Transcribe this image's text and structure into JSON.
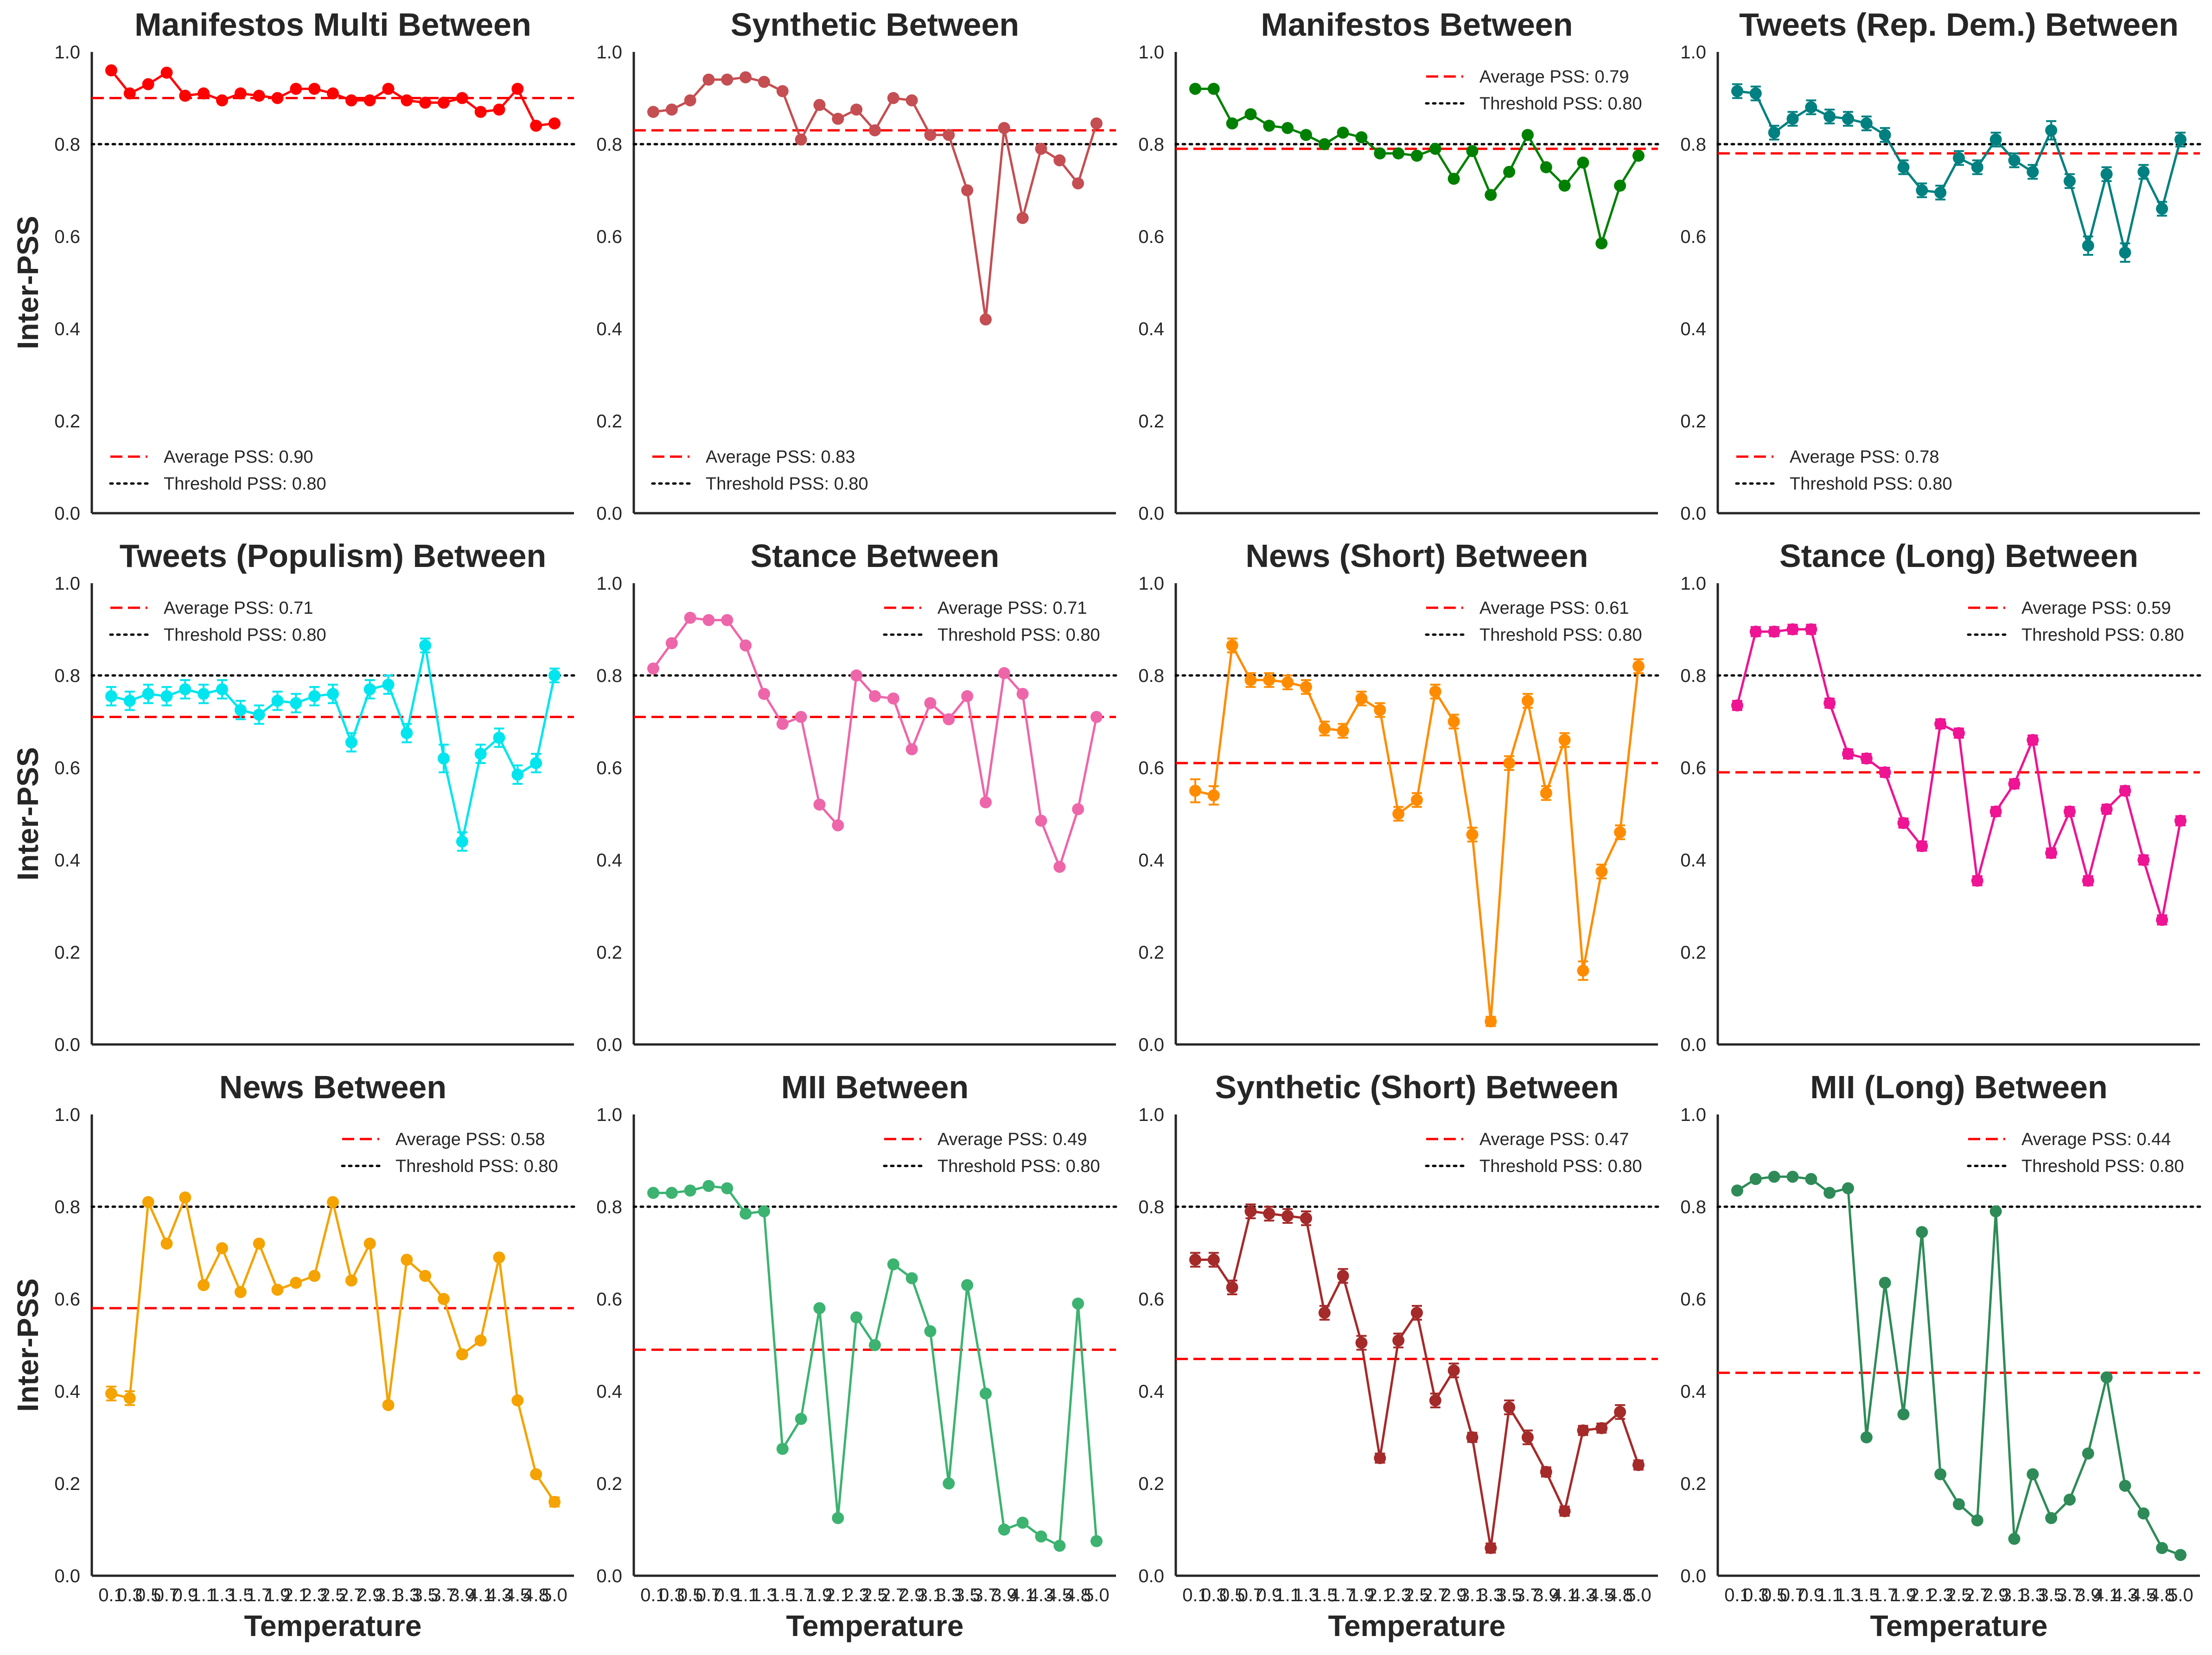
{
  "figure": {
    "ylabel": "Inter-PSS",
    "xlabel": "Temperature"
  },
  "chart_data": [
    {
      "type": "line",
      "title": "Manifestos Multi Between",
      "color": "#ff0000",
      "legend_position": "lower-left",
      "ylim": [
        0,
        1
      ],
      "yticks": [
        "0.0",
        "0.2",
        "0.4",
        "0.6",
        "0.8",
        "1.0"
      ],
      "x": [
        0.1,
        0.3,
        0.5,
        0.7,
        0.9,
        1.1,
        1.3,
        1.5,
        1.7,
        1.9,
        2.1,
        2.3,
        2.5,
        2.7,
        2.9,
        3.1,
        3.3,
        3.5,
        3.7,
        3.9,
        4.1,
        4.3,
        4.5,
        4.8,
        5.0
      ],
      "values": [
        0.96,
        0.91,
        0.93,
        0.955,
        0.905,
        0.91,
        0.895,
        0.91,
        0.905,
        0.9,
        0.92,
        0.92,
        0.91,
        0.895,
        0.895,
        0.92,
        0.895,
        0.89,
        0.89,
        0.9,
        0.87,
        0.875,
        0.92,
        0.84,
        0.845
      ],
      "errors": [
        0,
        0,
        0,
        0,
        0,
        0,
        0,
        0,
        0,
        0,
        0,
        0,
        0,
        0,
        0,
        0,
        0,
        0,
        0,
        0,
        0,
        0,
        0,
        0,
        0
      ],
      "average": 0.9,
      "threshold": 0.8,
      "legend": [
        "Average PSS: 0.90",
        "Threshold PSS: 0.80"
      ],
      "show_xticks": false,
      "show_xlabel": false,
      "show_ylabel": true
    },
    {
      "type": "line",
      "title": "Synthetic Between",
      "color": "#c44e52",
      "legend_position": "lower-left",
      "ylim": [
        0,
        1
      ],
      "yticks": [
        "0.0",
        "0.2",
        "0.4",
        "0.6",
        "0.8",
        "1.0"
      ],
      "x": [
        0.1,
        0.3,
        0.5,
        0.7,
        0.9,
        1.1,
        1.3,
        1.5,
        1.7,
        1.9,
        2.1,
        2.3,
        2.5,
        2.7,
        2.9,
        3.1,
        3.3,
        3.5,
        3.7,
        3.9,
        4.1,
        4.3,
        4.5,
        4.8,
        5.0
      ],
      "values": [
        0.87,
        0.875,
        0.895,
        0.94,
        0.94,
        0.945,
        0.935,
        0.915,
        0.81,
        0.885,
        0.855,
        0.875,
        0.83,
        0.9,
        0.895,
        0.82,
        0.82,
        0.7,
        0.42,
        0.835,
        0.64,
        0.79,
        0.765,
        0.715,
        0.845
      ],
      "errors": [
        0,
        0,
        0,
        0,
        0,
        0,
        0,
        0,
        0,
        0,
        0,
        0,
        0,
        0,
        0,
        0,
        0,
        0,
        0,
        0,
        0,
        0,
        0,
        0,
        0
      ],
      "average": 0.83,
      "threshold": 0.8,
      "legend": [
        "Average PSS: 0.83",
        "Threshold PSS: 0.80"
      ],
      "show_xticks": false,
      "show_xlabel": false,
      "show_ylabel": false
    },
    {
      "type": "line",
      "title": "Manifestos Between",
      "color": "#008000",
      "legend_position": "upper-right",
      "ylim": [
        0,
        1
      ],
      "yticks": [
        "0.0",
        "0.2",
        "0.4",
        "0.6",
        "0.8",
        "1.0"
      ],
      "x": [
        0.1,
        0.3,
        0.5,
        0.7,
        0.9,
        1.1,
        1.3,
        1.5,
        1.7,
        1.9,
        2.1,
        2.3,
        2.5,
        2.7,
        2.9,
        3.1,
        3.3,
        3.5,
        3.7,
        3.9,
        4.1,
        4.3,
        4.5,
        4.8,
        5.0
      ],
      "values": [
        0.92,
        0.92,
        0.845,
        0.865,
        0.84,
        0.835,
        0.82,
        0.8,
        0.825,
        0.815,
        0.78,
        0.78,
        0.775,
        0.79,
        0.725,
        0.785,
        0.69,
        0.74,
        0.82,
        0.75,
        0.71,
        0.76,
        0.585,
        0.71,
        0.775
      ],
      "errors": [
        0,
        0,
        0,
        0,
        0,
        0,
        0,
        0,
        0,
        0,
        0,
        0,
        0,
        0,
        0,
        0,
        0,
        0,
        0,
        0,
        0,
        0,
        0,
        0,
        0
      ],
      "average": 0.79,
      "threshold": 0.8,
      "legend": [
        "Average PSS: 0.79",
        "Threshold PSS: 0.80"
      ],
      "show_xticks": false,
      "show_xlabel": false,
      "show_ylabel": false
    },
    {
      "type": "line",
      "title": "Tweets (Rep. Dem.) Between",
      "color": "#008080",
      "legend_position": "lower-left",
      "ylim": [
        0,
        1
      ],
      "yticks": [
        "0.0",
        "0.2",
        "0.4",
        "0.6",
        "0.8",
        "1.0"
      ],
      "x": [
        0.1,
        0.3,
        0.5,
        0.7,
        0.9,
        1.1,
        1.3,
        1.5,
        1.7,
        1.9,
        2.1,
        2.3,
        2.5,
        2.7,
        2.9,
        3.1,
        3.3,
        3.5,
        3.7,
        3.9,
        4.1,
        4.3,
        4.5,
        4.8,
        5.0
      ],
      "values": [
        0.915,
        0.91,
        0.825,
        0.855,
        0.88,
        0.86,
        0.855,
        0.845,
        0.82,
        0.75,
        0.7,
        0.695,
        0.77,
        0.75,
        0.81,
        0.765,
        0.74,
        0.83,
        0.72,
        0.58,
        0.735,
        0.565,
        0.74,
        0.66,
        0.81
      ],
      "errors": [
        0.015,
        0.015,
        0.015,
        0.015,
        0.015,
        0.015,
        0.015,
        0.015,
        0.015,
        0.015,
        0.015,
        0.015,
        0.015,
        0.015,
        0.015,
        0.015,
        0.015,
        0.02,
        0.015,
        0.02,
        0.015,
        0.02,
        0.015,
        0.015,
        0.015
      ],
      "average": 0.78,
      "threshold": 0.8,
      "legend": [
        "Average PSS: 0.78",
        "Threshold PSS: 0.80"
      ],
      "show_xticks": false,
      "show_xlabel": false,
      "show_ylabel": false
    },
    {
      "type": "line",
      "title": "Tweets (Populism) Between",
      "color": "#00e5ee",
      "legend_position": "upper-left",
      "ylim": [
        0,
        1
      ],
      "yticks": [
        "0.0",
        "0.2",
        "0.4",
        "0.6",
        "0.8",
        "1.0"
      ],
      "x": [
        0.1,
        0.3,
        0.5,
        0.7,
        0.9,
        1.1,
        1.3,
        1.5,
        1.7,
        1.9,
        2.1,
        2.3,
        2.5,
        2.7,
        2.9,
        3.1,
        3.3,
        3.5,
        3.7,
        3.9,
        4.1,
        4.3,
        4.5,
        4.8,
        5.0
      ],
      "values": [
        0.755,
        0.745,
        0.76,
        0.755,
        0.77,
        0.76,
        0.77,
        0.725,
        0.715,
        0.745,
        0.74,
        0.755,
        0.76,
        0.655,
        0.77,
        0.78,
        0.675,
        0.865,
        0.62,
        0.44,
        0.63,
        0.665,
        0.585,
        0.61,
        0.8
      ],
      "errors": [
        0.02,
        0.02,
        0.02,
        0.02,
        0.02,
        0.02,
        0.02,
        0.02,
        0.02,
        0.02,
        0.02,
        0.02,
        0.02,
        0.02,
        0.02,
        0.02,
        0.02,
        0.015,
        0.03,
        0.02,
        0.02,
        0.02,
        0.02,
        0.02,
        0.015
      ],
      "average": 0.71,
      "threshold": 0.8,
      "legend": [
        "Average PSS: 0.71",
        "Threshold PSS: 0.80"
      ],
      "show_xticks": false,
      "show_xlabel": false,
      "show_ylabel": true
    },
    {
      "type": "line",
      "title": "Stance Between",
      "color": "#ee66aa",
      "legend_position": "upper-right",
      "ylim": [
        0,
        1
      ],
      "yticks": [
        "0.0",
        "0.2",
        "0.4",
        "0.6",
        "0.8",
        "1.0"
      ],
      "x": [
        0.1,
        0.3,
        0.5,
        0.7,
        0.9,
        1.1,
        1.3,
        1.5,
        1.7,
        1.9,
        2.1,
        2.3,
        2.5,
        2.7,
        2.9,
        3.1,
        3.3,
        3.5,
        3.7,
        3.9,
        4.1,
        4.3,
        4.5,
        4.8,
        5.0
      ],
      "values": [
        0.815,
        0.87,
        0.925,
        0.92,
        0.92,
        0.865,
        0.76,
        0.695,
        0.71,
        0.52,
        0.475,
        0.8,
        0.755,
        0.75,
        0.64,
        0.74,
        0.705,
        0.755,
        0.525,
        0.805,
        0.76,
        0.485,
        0.385,
        0.51,
        0.71
      ],
      "errors": [
        0,
        0,
        0,
        0,
        0,
        0,
        0,
        0,
        0,
        0,
        0,
        0,
        0,
        0,
        0,
        0,
        0,
        0,
        0,
        0,
        0,
        0,
        0,
        0,
        0
      ],
      "average": 0.71,
      "threshold": 0.8,
      "legend": [
        "Average PSS: 0.71",
        "Threshold PSS: 0.80"
      ],
      "show_xticks": false,
      "show_xlabel": false,
      "show_ylabel": false
    },
    {
      "type": "line",
      "title": "News (Short) Between",
      "color": "#ff8c00",
      "legend_position": "upper-right",
      "ylim": [
        0,
        1
      ],
      "yticks": [
        "0.0",
        "0.2",
        "0.4",
        "0.6",
        "0.8",
        "1.0"
      ],
      "x": [
        0.1,
        0.3,
        0.5,
        0.7,
        0.9,
        1.1,
        1.3,
        1.5,
        1.7,
        1.9,
        2.1,
        2.3,
        2.5,
        2.7,
        2.9,
        3.1,
        3.3,
        3.5,
        3.7,
        3.9,
        4.1,
        4.3,
        4.5,
        4.8,
        5.0
      ],
      "values": [
        0.55,
        0.54,
        0.865,
        0.79,
        0.79,
        0.785,
        0.775,
        0.685,
        0.68,
        0.75,
        0.725,
        0.5,
        0.53,
        0.765,
        0.7,
        0.455,
        0.05,
        0.61,
        0.745,
        0.545,
        0.66,
        0.16,
        0.375,
        0.46,
        0.82
      ],
      "errors": [
        0.025,
        0.02,
        0.015,
        0.015,
        0.015,
        0.015,
        0.015,
        0.015,
        0.015,
        0.015,
        0.015,
        0.015,
        0.015,
        0.015,
        0.015,
        0.015,
        0.01,
        0.015,
        0.015,
        0.015,
        0.015,
        0.02,
        0.015,
        0.015,
        0.015
      ],
      "average": 0.61,
      "threshold": 0.8,
      "legend": [
        "Average PSS: 0.61",
        "Threshold PSS: 0.80"
      ],
      "show_xticks": false,
      "show_xlabel": false,
      "show_ylabel": false
    },
    {
      "type": "line",
      "title": "Stance (Long) Between",
      "color": "#ee1493",
      "legend_position": "upper-right",
      "ylim": [
        0,
        1
      ],
      "yticks": [
        "0.0",
        "0.2",
        "0.4",
        "0.6",
        "0.8",
        "1.0"
      ],
      "x": [
        0.1,
        0.3,
        0.5,
        0.7,
        0.9,
        1.1,
        1.3,
        1.5,
        1.7,
        1.9,
        2.1,
        2.3,
        2.5,
        2.7,
        2.9,
        3.1,
        3.3,
        3.5,
        3.7,
        3.9,
        4.1,
        4.3,
        4.5,
        4.8,
        5.0
      ],
      "values": [
        0.735,
        0.895,
        0.895,
        0.9,
        0.9,
        0.74,
        0.63,
        0.62,
        0.59,
        0.48,
        0.43,
        0.695,
        0.675,
        0.355,
        0.505,
        0.565,
        0.66,
        0.415,
        0.505,
        0.355,
        0.51,
        0.55,
        0.4,
        0.27,
        0.485
      ],
      "errors": [
        0.01,
        0.01,
        0.01,
        0.01,
        0.01,
        0.01,
        0.01,
        0.01,
        0.01,
        0.01,
        0.01,
        0.01,
        0.01,
        0.01,
        0.01,
        0.01,
        0.01,
        0.01,
        0.01,
        0.01,
        0.01,
        0.01,
        0.01,
        0.01,
        0.01
      ],
      "average": 0.59,
      "threshold": 0.8,
      "legend": [
        "Average PSS: 0.59",
        "Threshold PSS: 0.80"
      ],
      "show_xticks": false,
      "show_xlabel": false,
      "show_ylabel": false
    },
    {
      "type": "line",
      "title": "News Between",
      "color": "#f4a300",
      "legend_position": "upper-right",
      "ylim": [
        0,
        1
      ],
      "yticks": [
        "0.0",
        "0.2",
        "0.4",
        "0.6",
        "0.8",
        "1.0"
      ],
      "x": [
        0.1,
        0.3,
        0.5,
        0.7,
        0.9,
        1.1,
        1.3,
        1.5,
        1.7,
        1.9,
        2.1,
        2.3,
        2.5,
        2.7,
        2.9,
        3.1,
        3.3,
        3.5,
        3.7,
        3.9,
        4.1,
        4.3,
        4.5,
        4.8,
        5.0
      ],
      "values": [
        0.395,
        0.385,
        0.81,
        0.72,
        0.82,
        0.63,
        0.71,
        0.615,
        0.72,
        0.62,
        0.635,
        0.65,
        0.81,
        0.64,
        0.72,
        0.37,
        0.685,
        0.65,
        0.6,
        0.48,
        0.51,
        0.69,
        0.38,
        0.22,
        0.16
      ],
      "errors": [
        0.015,
        0.015,
        0,
        0,
        0,
        0,
        0,
        0,
        0,
        0,
        0,
        0,
        0,
        0,
        0,
        0,
        0,
        0,
        0,
        0,
        0,
        0,
        0,
        0,
        0.01
      ],
      "average": 0.58,
      "threshold": 0.8,
      "legend": [
        "Average PSS: 0.58",
        "Threshold PSS: 0.80"
      ],
      "show_xticks": true,
      "show_xlabel": true,
      "show_ylabel": true
    },
    {
      "type": "line",
      "title": "MII Between",
      "color": "#3cb371",
      "legend_position": "upper-right",
      "ylim": [
        0,
        1
      ],
      "yticks": [
        "0.0",
        "0.2",
        "0.4",
        "0.6",
        "0.8",
        "1.0"
      ],
      "x": [
        0.1,
        0.3,
        0.5,
        0.7,
        0.9,
        1.1,
        1.3,
        1.5,
        1.7,
        1.9,
        2.1,
        2.3,
        2.5,
        2.7,
        2.9,
        3.1,
        3.3,
        3.5,
        3.7,
        3.9,
        4.1,
        4.3,
        4.5,
        4.8,
        5.0
      ],
      "values": [
        0.83,
        0.83,
        0.835,
        0.845,
        0.84,
        0.785,
        0.79,
        0.275,
        0.34,
        0.58,
        0.125,
        0.56,
        0.5,
        0.675,
        0.645,
        0.53,
        0.2,
        0.63,
        0.395,
        0.1,
        0.115,
        0.085,
        0.065,
        0.59,
        0.075
      ],
      "errors": [
        0,
        0,
        0,
        0,
        0,
        0,
        0,
        0,
        0,
        0,
        0,
        0,
        0,
        0,
        0,
        0,
        0,
        0,
        0,
        0,
        0,
        0,
        0,
        0,
        0
      ],
      "average": 0.49,
      "threshold": 0.8,
      "legend": [
        "Average PSS: 0.49",
        "Threshold PSS: 0.80"
      ],
      "show_xticks": true,
      "show_xlabel": true,
      "show_ylabel": false
    },
    {
      "type": "line",
      "title": "Synthetic (Short) Between",
      "color": "#a52a2a",
      "legend_position": "upper-right",
      "ylim": [
        0,
        1
      ],
      "yticks": [
        "0.0",
        "0.2",
        "0.4",
        "0.6",
        "0.8",
        "1.0"
      ],
      "x": [
        0.1,
        0.3,
        0.5,
        0.7,
        0.9,
        1.1,
        1.3,
        1.5,
        1.7,
        1.9,
        2.1,
        2.3,
        2.5,
        2.7,
        2.9,
        3.1,
        3.3,
        3.5,
        3.7,
        3.9,
        4.1,
        4.3,
        4.5,
        4.8,
        5.0
      ],
      "values": [
        0.685,
        0.685,
        0.625,
        0.79,
        0.785,
        0.78,
        0.775,
        0.57,
        0.65,
        0.505,
        0.255,
        0.51,
        0.57,
        0.38,
        0.445,
        0.3,
        0.06,
        0.365,
        0.3,
        0.225,
        0.14,
        0.315,
        0.32,
        0.355,
        0.24
      ],
      "errors": [
        0.015,
        0.015,
        0.015,
        0.015,
        0.015,
        0.015,
        0.015,
        0.015,
        0.015,
        0.015,
        0.01,
        0.015,
        0.015,
        0.015,
        0.015,
        0.01,
        0.01,
        0.015,
        0.015,
        0.01,
        0.01,
        0.01,
        0.01,
        0.015,
        0.01
      ],
      "average": 0.47,
      "threshold": 0.8,
      "legend": [
        "Average PSS: 0.47",
        "Threshold PSS: 0.80"
      ],
      "show_xticks": true,
      "show_xlabel": true,
      "show_ylabel": false
    },
    {
      "type": "line",
      "title": "MII (Long) Between",
      "color": "#2e8b57",
      "legend_position": "upper-right",
      "ylim": [
        0,
        1
      ],
      "yticks": [
        "0.0",
        "0.2",
        "0.4",
        "0.6",
        "0.8",
        "1.0"
      ],
      "x": [
        0.1,
        0.3,
        0.5,
        0.7,
        0.9,
        1.1,
        1.3,
        1.5,
        1.7,
        1.9,
        2.1,
        2.3,
        2.5,
        2.7,
        2.9,
        3.1,
        3.3,
        3.5,
        3.7,
        3.9,
        4.1,
        4.3,
        4.5,
        4.8,
        5.0
      ],
      "values": [
        0.835,
        0.86,
        0.865,
        0.865,
        0.86,
        0.83,
        0.84,
        0.3,
        0.635,
        0.35,
        0.745,
        0.22,
        0.155,
        0.12,
        0.79,
        0.08,
        0.22,
        0.125,
        0.165,
        0.265,
        0.43,
        0.195,
        0.135,
        0.06,
        0.045
      ],
      "errors": [
        0,
        0,
        0,
        0,
        0,
        0,
        0,
        0,
        0,
        0,
        0,
        0,
        0,
        0,
        0,
        0,
        0,
        0,
        0,
        0,
        0,
        0,
        0,
        0,
        0
      ],
      "average": 0.44,
      "threshold": 0.8,
      "legend": [
        "Average PSS: 0.44",
        "Threshold PSS: 0.80"
      ],
      "show_xticks": true,
      "show_xlabel": true,
      "show_ylabel": false
    }
  ],
  "xtick_labels": [
    "0.1",
    "0.3",
    "0.5",
    "0.7",
    "0.9",
    "1.1",
    "1.3",
    "1.5",
    "1.7",
    "1.9",
    "2.1",
    "2.3",
    "2.5",
    "2.7",
    "2.9",
    "3.1",
    "3.3",
    "3.5",
    "3.7",
    "3.9",
    "4.1",
    "4.3",
    "4.5",
    "4.8",
    "5.0"
  ]
}
